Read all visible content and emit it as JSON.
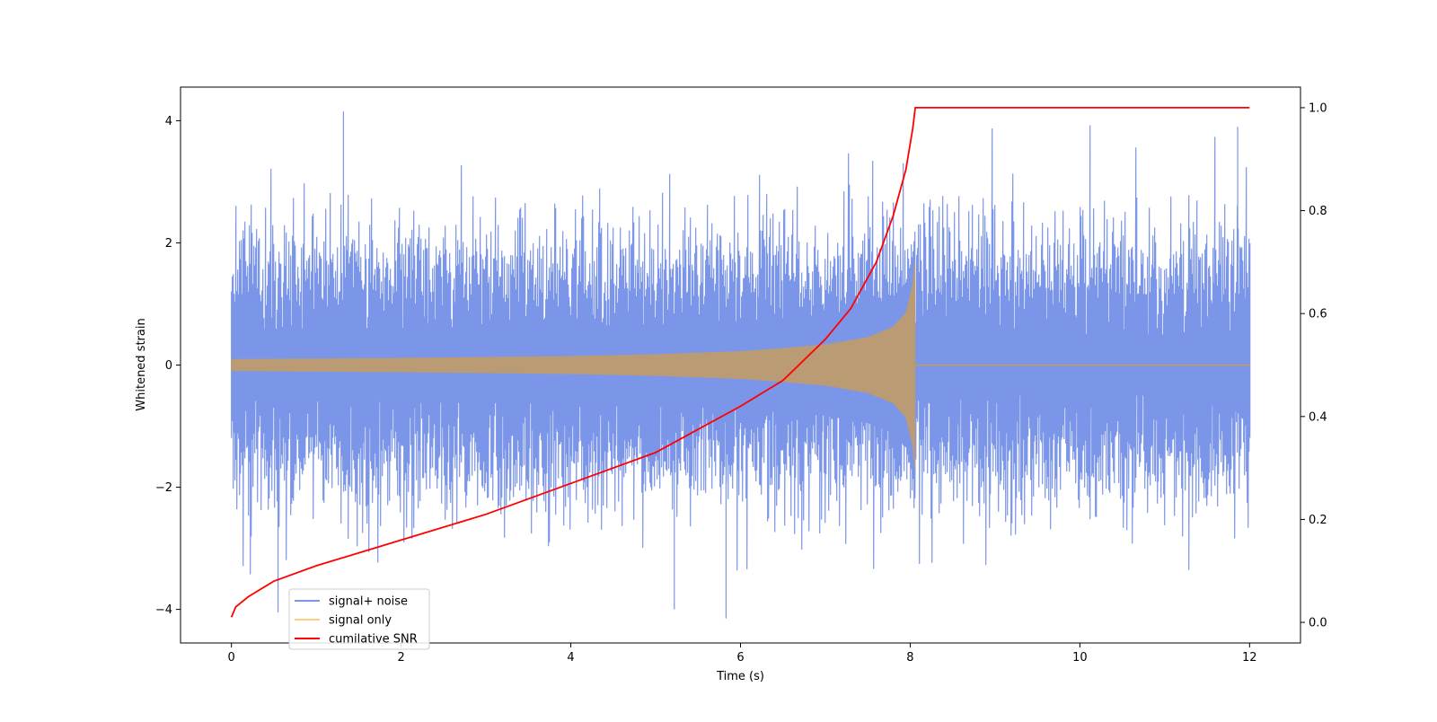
{
  "chart_data": {
    "type": "line",
    "title": "",
    "xlabel": "Time (s)",
    "ylabel": "Whitened strain",
    "y2label": "",
    "xlim": [
      -0.6,
      12.6
    ],
    "ylim": [
      -4.55,
      4.55
    ],
    "y2lim": [
      -0.04,
      1.04
    ],
    "xticks": [
      0,
      2,
      4,
      6,
      8,
      10,
      12
    ],
    "xtick_labels": [
      "0",
      "2",
      "4",
      "6",
      "8",
      "10",
      "12"
    ],
    "yticks": [
      -4,
      -2,
      0,
      2,
      4
    ],
    "ytick_labels": [
      "−4",
      "−2",
      "0",
      "2",
      "4"
    ],
    "y2ticks": [
      0.0,
      0.2,
      0.4,
      0.6,
      0.8,
      1.0
    ],
    "y2tick_labels": [
      "0.0",
      "0.2",
      "0.4",
      "0.6",
      "0.8",
      "1.0"
    ],
    "grid": false,
    "legend_position": "lower-left",
    "merger_time": 8.06,
    "series": [
      {
        "name": "signal+ noise",
        "axis": "left",
        "color": "#7b96e8",
        "noise_sigma": 0.95,
        "x_range": [
          0,
          12
        ],
        "peak_max": 4.15,
        "peak_min": -4.15
      },
      {
        "name": "signal only",
        "axis": "left",
        "color": "#ffcc80",
        "x_range": [
          0,
          12
        ],
        "envelope": {
          "x": [
            0,
            2,
            4,
            5,
            6,
            6.5,
            7,
            7.5,
            7.8,
            7.95,
            8.03,
            8.06
          ],
          "amp": [
            0.09,
            0.11,
            0.14,
            0.17,
            0.22,
            0.27,
            0.33,
            0.45,
            0.62,
            0.85,
            1.3,
            1.75
          ]
        }
      },
      {
        "name": "cumilative SNR",
        "axis": "right",
        "color": "#ff0000",
        "x": [
          0,
          0.05,
          0.2,
          0.5,
          1,
          2,
          3,
          4,
          5,
          6,
          6.5,
          7,
          7.3,
          7.6,
          7.8,
          7.95,
          8.03,
          8.06,
          8.07,
          12
        ],
        "values": [
          0.01,
          0.03,
          0.05,
          0.08,
          0.11,
          0.16,
          0.21,
          0.27,
          0.33,
          0.42,
          0.47,
          0.55,
          0.61,
          0.7,
          0.79,
          0.88,
          0.96,
          1.0,
          1.0,
          1.0
        ]
      }
    ]
  }
}
